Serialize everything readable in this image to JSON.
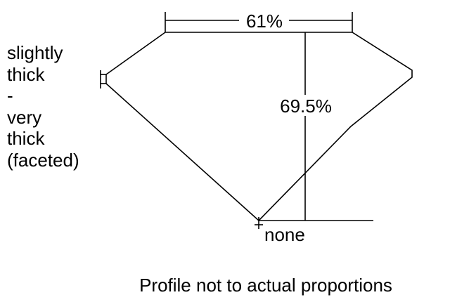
{
  "diagram": {
    "table_percent": "61%",
    "depth_percent": "69.5%",
    "culet": "none",
    "girdle_lines": [
      "slightly",
      "thick",
      "-",
      "very",
      "thick",
      "(faceted)"
    ],
    "footnote": "Profile not to actual proportions",
    "line_color": "#000000"
  }
}
